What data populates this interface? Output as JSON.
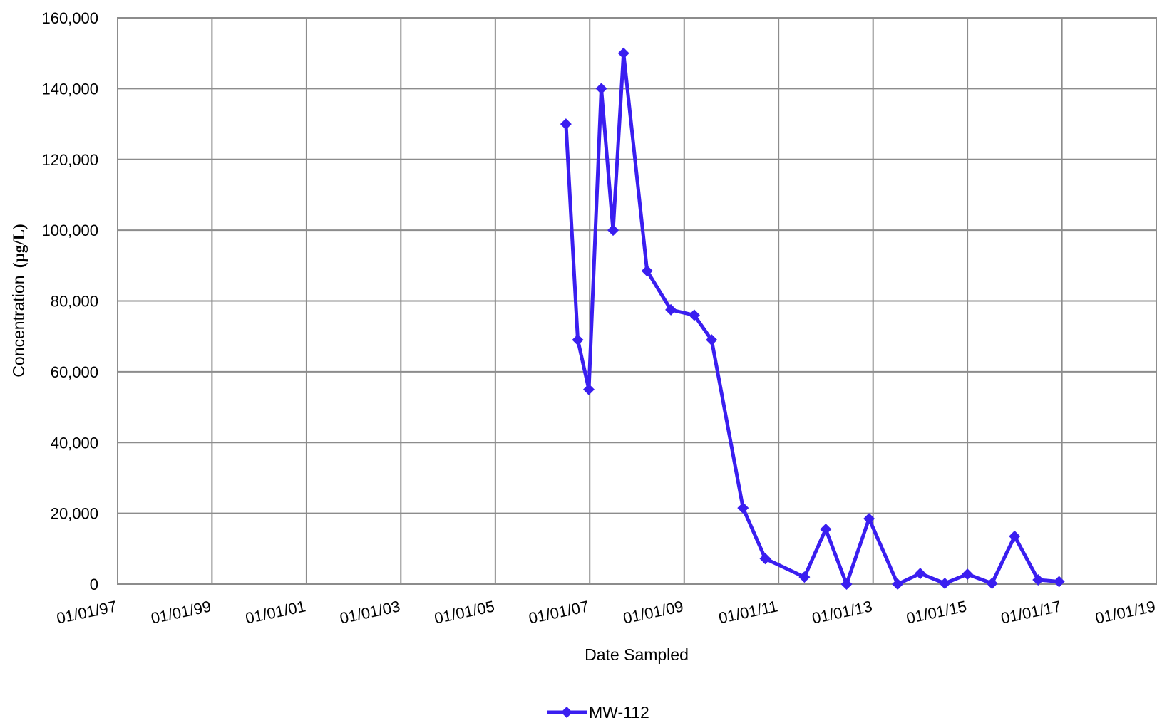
{
  "chart_data": {
    "type": "line",
    "xlabel": "Date Sampled",
    "ylabel": "Concentration",
    "ylabel_unit": "(µg/L)",
    "ylim": [
      0,
      160000
    ],
    "yticks": [
      {
        "value": 0,
        "label": "0"
      },
      {
        "value": 20000,
        "label": "20,000"
      },
      {
        "value": 40000,
        "label": "40,000"
      },
      {
        "value": 60000,
        "label": "60,000"
      },
      {
        "value": 80000,
        "label": "80,000"
      },
      {
        "value": 100000,
        "label": "100,000"
      },
      {
        "value": 120000,
        "label": "120,000"
      },
      {
        "value": 140000,
        "label": "140,000"
      },
      {
        "value": 160000,
        "label": "160,000"
      }
    ],
    "xlim": [
      "1997-01-01",
      "2019-01-01"
    ],
    "xticks": [
      {
        "value": "1997-01-01",
        "label": "01/01/97"
      },
      {
        "value": "1999-01-01",
        "label": "01/01/99"
      },
      {
        "value": "2001-01-01",
        "label": "01/01/01"
      },
      {
        "value": "2003-01-01",
        "label": "01/01/03"
      },
      {
        "value": "2005-01-01",
        "label": "01/01/05"
      },
      {
        "value": "2007-01-01",
        "label": "01/01/07"
      },
      {
        "value": "2009-01-01",
        "label": "01/01/09"
      },
      {
        "value": "2011-01-01",
        "label": "01/01/11"
      },
      {
        "value": "2013-01-01",
        "label": "01/01/13"
      },
      {
        "value": "2015-01-01",
        "label": "01/01/15"
      },
      {
        "value": "2017-01-01",
        "label": "01/01/17"
      },
      {
        "value": "2019-01-01",
        "label": "01/01/19"
      }
    ],
    "grid": true,
    "legend_position": "bottom-center",
    "series": [
      {
        "name": "MW-112",
        "color": "#3a1ef0",
        "marker": "diamond",
        "points": [
          {
            "x": "2006-07-01",
            "y": 130000
          },
          {
            "x": "2006-10-01",
            "y": 69000
          },
          {
            "x": "2006-12-25",
            "y": 55000
          },
          {
            "x": "2007-04-01",
            "y": 140000
          },
          {
            "x": "2007-07-01",
            "y": 100000
          },
          {
            "x": "2007-09-20",
            "y": 150000
          },
          {
            "x": "2008-03-20",
            "y": 88500
          },
          {
            "x": "2008-09-20",
            "y": 77500
          },
          {
            "x": "2009-03-20",
            "y": 76000
          },
          {
            "x": "2009-08-01",
            "y": 69000
          },
          {
            "x": "2010-04-01",
            "y": 21500
          },
          {
            "x": "2010-09-20",
            "y": 7200
          },
          {
            "x": "2011-07-20",
            "y": 2000
          },
          {
            "x": "2012-01-01",
            "y": 15500
          },
          {
            "x": "2012-06-10",
            "y": 0
          },
          {
            "x": "2012-12-01",
            "y": 18500
          },
          {
            "x": "2013-07-10",
            "y": 0
          },
          {
            "x": "2014-01-01",
            "y": 3000
          },
          {
            "x": "2014-07-10",
            "y": 200
          },
          {
            "x": "2015-01-01",
            "y": 2800
          },
          {
            "x": "2015-07-10",
            "y": 200
          },
          {
            "x": "2016-01-01",
            "y": 13500
          },
          {
            "x": "2016-07-01",
            "y": 1200
          },
          {
            "x": "2016-12-10",
            "y": 700
          }
        ]
      }
    ]
  }
}
